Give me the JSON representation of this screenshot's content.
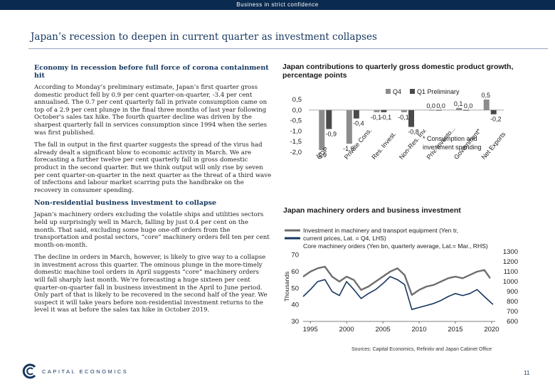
{
  "header": {
    "banner": "Business in strict confidence"
  },
  "page": {
    "title": "Japan’s recession to deepen in current quarter as investment collapses",
    "page_number": "11",
    "logo_text": "CAPITAL ECONOMICS",
    "sources": "Sources: Capital Economics, Refinitiv and Japan Cabinet Office"
  },
  "left": {
    "heading1": "Economy in recession before full force of corona containment hit",
    "para1": "According to Monday’s preliminary estimate, Japan’s first quarter gross domestic product fell by 0.9 per cent quarter-on-quarter, -3.4 per cent annualised. The 0.7 per cent quarterly fall in private consumption came on top of a 2.9 per cent plunge in the final three months of last year following October’s sales tax hike. The fourth quarter decline was driven by the sharpest quarterly fall in services consumption since 1994 when the series was first published.",
    "para2": "The fall in output in the first quarter suggests the spread of the virus had already dealt a significant blow to economic activity in March. We are forecasting a further twelve per cent quarterly fall in gross domestic product in the second quarter. But we think output will only rise by seven per cent quarter-on-quarter in the next quarter as the threat of a third wave of infections and labour market scarring puts the handbrake on the recovery in consumer spending.",
    "heading2": "Non-residential business investment to collapse",
    "para3": "Japan’s machinery orders excluding the volatile ships and utilities sectors held up surprisingly well in March, falling by just 0.4 per cent on the month. That said, excluding some huge one-off orders from the transportation and postal sectors, “core” machinery orders fell ten per cent month-on-month.",
    "para4": "The decline in orders in March, however, is likely to give way to a collapse in investment across this quarter. The ominous plunge in the more-timely domestic machine tool orders in April suggests “core” machinery orders will fall sharply last month. We’re forecasting a huge sixteen per cent quarter-on-quarter fall in business investment in the April to June period. Only part of that is likely to be recovered in the second half of the year. We suspect it will take years before non-residential investment returns to the level it was at before the sales tax hike in October 2019."
  },
  "chart_data": [
    {
      "type": "bar",
      "title": "Japan contributions to quarterly gross domestic product growth, percentage points",
      "categories": [
        "GDP",
        "Private Cons.",
        "Res. Invest.",
        "Non-Res. Inv.",
        "Priv. Invento...",
        "Government*",
        "Net Exports"
      ],
      "series": [
        {
          "name": "Q4",
          "color": "#8c8c8c",
          "values": [
            -1.9,
            -1.6,
            -0.1,
            -0.1,
            0.0,
            0.1,
            0.5
          ]
        },
        {
          "name": "Q1 Preliminary",
          "color": "#4a4a4a",
          "values": [
            -0.9,
            -0.4,
            -0.1,
            -0.8,
            0.0,
            0.0,
            -0.2
          ]
        }
      ],
      "data_labels": [
        [
          "-1,9",
          "-1,6",
          "-0,1",
          "-0,1",
          "0,0",
          "0,1",
          "0,5"
        ],
        [
          "-0,9",
          "-0,4",
          "-0,1",
          "-0,8",
          "0,0",
          "0,0",
          "-0,2"
        ]
      ],
      "yticks": [
        "0,5",
        "0,0",
        "-0,5",
        "-1,0",
        "-1,5",
        "-2,0"
      ],
      "ylim": [
        -2.0,
        0.5
      ],
      "note": "* Consumption and investment spending"
    },
    {
      "type": "line",
      "title": "Japan machinery orders and business investment",
      "xticks": [
        "1995",
        "2000",
        "2005",
        "2010",
        "2015",
        "2020"
      ],
      "xlim": [
        1994,
        2020.5
      ],
      "ylabel": "Thousands",
      "y_left_ticks": [
        "30",
        "40",
        "50",
        "60",
        "70"
      ],
      "y_left_lim": [
        30,
        72
      ],
      "y_right_ticks": [
        "600",
        "700",
        "800",
        "900",
        "1000",
        "1100",
        "1200",
        "1300"
      ],
      "y_right_lim": [
        600,
        1300
      ],
      "series": [
        {
          "name": "Investment in machinery and transport equipment (Yen tr, current prices, Lat. = Q4, LHS)",
          "axis": "left",
          "color": "#6e6e6e",
          "points": [
            [
              1994,
              57
            ],
            [
              1995,
              60
            ],
            [
              1996,
              62
            ],
            [
              1997,
              63
            ],
            [
              1998,
              57
            ],
            [
              1999,
              54
            ],
            [
              2000,
              57
            ],
            [
              2001,
              55
            ],
            [
              2002,
              49
            ],
            [
              2003,
              51
            ],
            [
              2004,
              54
            ],
            [
              2005,
              57
            ],
            [
              2006,
              60
            ],
            [
              2007,
              62
            ],
            [
              2008,
              58
            ],
            [
              2009,
              46
            ],
            [
              2010,
              49
            ],
            [
              2011,
              51
            ],
            [
              2012,
              52
            ],
            [
              2013,
              54
            ],
            [
              2014,
              56
            ],
            [
              2015,
              57
            ],
            [
              2016,
              56
            ],
            [
              2017,
              58
            ],
            [
              2018,
              60
            ],
            [
              2019,
              61
            ],
            [
              2019.8,
              56
            ]
          ]
        },
        {
          "name": "Core machinery orders (Yen bn, quarterly average, Lat.= Mar., RHS)",
          "axis": "right",
          "color": "#16365f",
          "points": [
            [
              1994,
              850
            ],
            [
              1995,
              920
            ],
            [
              1996,
              1000
            ],
            [
              1997,
              1020
            ],
            [
              1998,
              900
            ],
            [
              1999,
              860
            ],
            [
              2000,
              1000
            ],
            [
              2001,
              920
            ],
            [
              2002,
              830
            ],
            [
              2003,
              880
            ],
            [
              2004,
              920
            ],
            [
              2005,
              980
            ],
            [
              2006,
              1050
            ],
            [
              2007,
              1020
            ],
            [
              2008,
              970
            ],
            [
              2009,
              720
            ],
            [
              2010,
              740
            ],
            [
              2011,
              760
            ],
            [
              2012,
              780
            ],
            [
              2013,
              810
            ],
            [
              2014,
              850
            ],
            [
              2015,
              880
            ],
            [
              2016,
              860
            ],
            [
              2017,
              880
            ],
            [
              2018,
              920
            ],
            [
              2019,
              850
            ],
            [
              2020.2,
              770
            ]
          ]
        }
      ]
    }
  ]
}
